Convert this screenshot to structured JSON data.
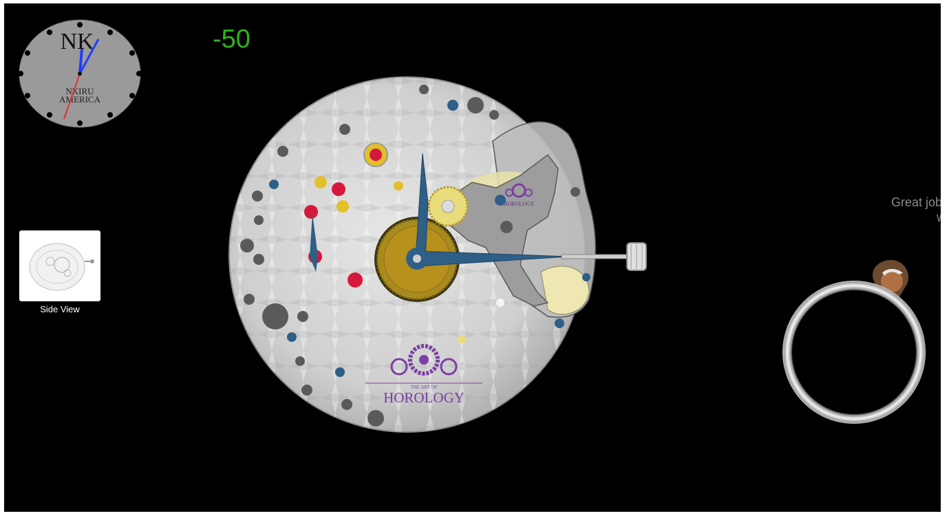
{
  "hud": {
    "score": "-50",
    "side_view_label": "Side View",
    "hint_line1": "Great job!",
    "hint_line2": "w"
  },
  "mini_clock": {
    "monogram": "NK",
    "brand_line1": "NKIRU",
    "brand_line2": "AMERICA",
    "hour_hand_color": "#1f3dff",
    "minute_hand_color": "#1f3dff",
    "second_hand_color": "#e03030"
  },
  "movement": {
    "logo_small_text": "HOROLOGY",
    "logo_large_top": "THE ART OF",
    "logo_large_text": "HOROLOGY",
    "logo_color": "#7b3fa6",
    "hand_color": "#2e5f87",
    "jewel_color": "#d6183c",
    "gear_color": "#b8901c"
  },
  "icons": {
    "side_view": "watch-movement-thumbnail-icon",
    "avatar": "character-avatar-icon",
    "ring": "silver-ring-icon"
  }
}
